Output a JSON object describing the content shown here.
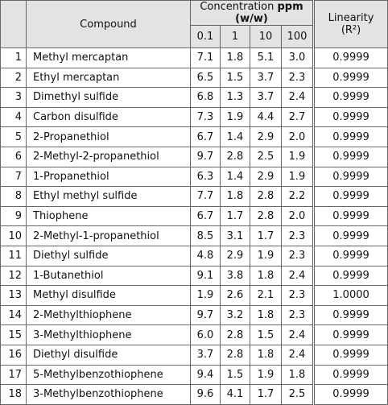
{
  "header": {
    "compound": "Compound",
    "concentration": "Concentration",
    "unit": "ppm (w/w)",
    "levels": [
      "0.1",
      "1",
      "10",
      "100"
    ],
    "linearity": "Linearity",
    "linearity_unit": "(R²)"
  },
  "table": {
    "rows": [
      [
        "1",
        "Methyl mercaptan",
        "7.1",
        "1.8",
        "5.1",
        "3.0",
        "0.9999"
      ],
      [
        "2",
        "Ethyl mercaptan",
        "6.5",
        "1.5",
        "3.7",
        "2.3",
        "0.9999"
      ],
      [
        "3",
        "Dimethyl sulfide",
        "6.8",
        "1.3",
        "3.7",
        "2.4",
        "0.9999"
      ],
      [
        "4",
        "Carbon disulfide",
        "7.3",
        "1.9",
        "4.4",
        "2.7",
        "0.9999"
      ],
      [
        "5",
        "2-Propanethiol",
        "6.7",
        "1.4",
        "2.9",
        "2.0",
        "0.9999"
      ],
      [
        "6",
        "2-Methyl-2-propanethiol",
        "9.7",
        "2.8",
        "2.5",
        "1.9",
        "0.9999"
      ],
      [
        "7",
        "1-Propanethiol",
        "6.3",
        "1.4",
        "2.9",
        "1.9",
        "0.9999"
      ],
      [
        "8",
        "Ethyl methyl sulfide",
        "7.7",
        "1.8",
        "2.8",
        "2.2",
        "0.9999"
      ],
      [
        "9",
        "Thiophene",
        "6.7",
        "1.7",
        "2.8",
        "2.0",
        "0.9999"
      ],
      [
        "10",
        "2-Methyl-1-propanethiol",
        "8.5",
        "3.1",
        "1.7",
        "2.3",
        "0.9999"
      ],
      [
        "11",
        "Diethyl sulfide",
        "4.8",
        "2.9",
        "1.9",
        "2.3",
        "0.9999"
      ],
      [
        "12",
        "1-Butanethiol",
        "9.1",
        "3.8",
        "1.8",
        "2.4",
        "0.9999"
      ],
      [
        "13",
        "Methyl disulfide",
        "1.9",
        "2.6",
        "2.1",
        "2.3",
        "1.0000"
      ],
      [
        "14",
        "2-Methylthiophene",
        "9.7",
        "3.2",
        "1.8",
        "2.3",
        "0.9999"
      ],
      [
        "15",
        "3-Methylthiophene",
        "6.0",
        "2.8",
        "1.5",
        "2.4",
        "0.9999"
      ],
      [
        "16",
        "Diethyl disulfide",
        "3.7",
        "2.8",
        "1.8",
        "2.4",
        "0.9999"
      ],
      [
        "17",
        "5-Methylbenzothiophene",
        "9.4",
        "1.5",
        "1.9",
        "1.8",
        "0.9999"
      ],
      [
        "18",
        "3-Methylbenzothiophene",
        "9.6",
        "4.1",
        "1.7",
        "2.5",
        "0.9999"
      ]
    ]
  }
}
